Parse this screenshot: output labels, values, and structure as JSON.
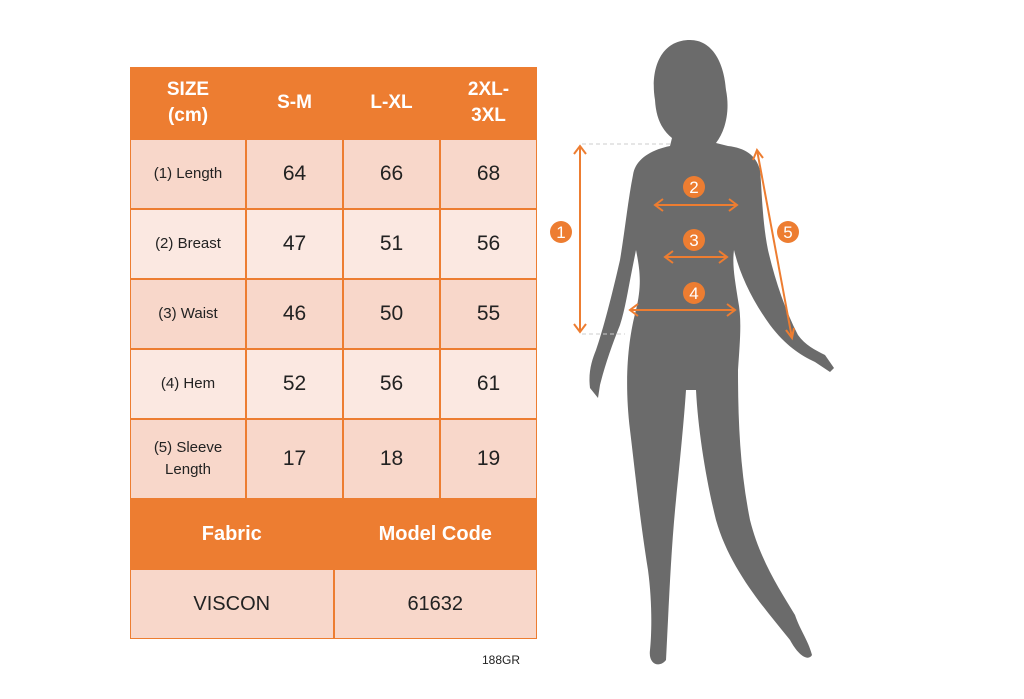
{
  "table": {
    "headers": [
      "SIZE (cm)",
      "S-M",
      "L-XL",
      "2XL- 3XL"
    ],
    "rows": [
      {
        "label": "(1) Length",
        "values": [
          "64",
          "66",
          "68"
        ]
      },
      {
        "label": "(2) Breast",
        "values": [
          "47",
          "51",
          "56"
        ]
      },
      {
        "label": "(3) Waist",
        "values": [
          "46",
          "50",
          "55"
        ]
      },
      {
        "label": "(4) Hem",
        "values": [
          "52",
          "56",
          "61"
        ]
      },
      {
        "label": "(5) Sleeve Length",
        "values": [
          "17",
          "18",
          "19"
        ]
      }
    ],
    "fabric_label": "Fabric",
    "model_code_label": "Model Code",
    "fabric_value": "VISCON",
    "model_code_value": "61632"
  },
  "product_code": "188GR",
  "figure": {
    "markers": [
      "1",
      "2",
      "3",
      "4",
      "5"
    ]
  },
  "colors": {
    "accent": "#ED7D31",
    "cell_light": "#FBE8E1",
    "cell_dark": "#F8D7CA",
    "silhouette": "#6B6B6B"
  }
}
